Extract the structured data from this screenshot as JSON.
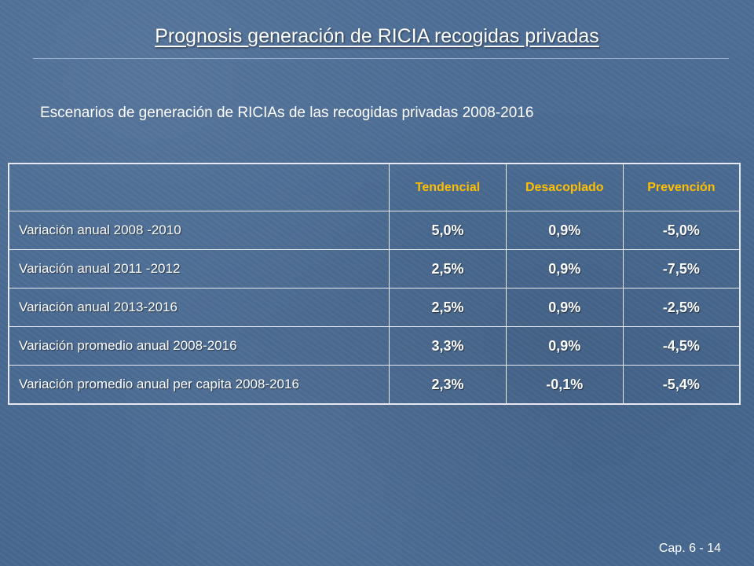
{
  "slide": {
    "title": "Prognosis generación de RICIA recogidas privadas",
    "subtitle": "Escenarios de generación de RICIAs de las recogidas privadas 2008-2016",
    "footer": "Cap. 6 - 14"
  },
  "table": {
    "headers": [
      "",
      "Tendencial",
      "Desacoplado",
      "Prevención"
    ],
    "rows": [
      {
        "label": "Variación anual 2008 -2010",
        "values": [
          "5,0%",
          "0,9%",
          "-5,0%"
        ]
      },
      {
        "label": "Variación anual 2011 -2012",
        "values": [
          "2,5%",
          "0,9%",
          "-7,5%"
        ]
      },
      {
        "label": "Variación anual 2013-2016",
        "values": [
          "2,5%",
          "0,9%",
          "-2,5%"
        ]
      },
      {
        "label": "Variación promedio anual 2008-2016",
        "values": [
          "3,3%",
          "0,9%",
          "-4,5%"
        ]
      },
      {
        "label": "Variación promedio anual per capita 2008-2016",
        "values": [
          "2,3%",
          "-0,1%",
          "-5,4%"
        ]
      }
    ]
  },
  "colors": {
    "header_text": "#ffbf00",
    "background": "#4a6b93",
    "border": "#e6eaf0",
    "text": "#ffffff"
  }
}
